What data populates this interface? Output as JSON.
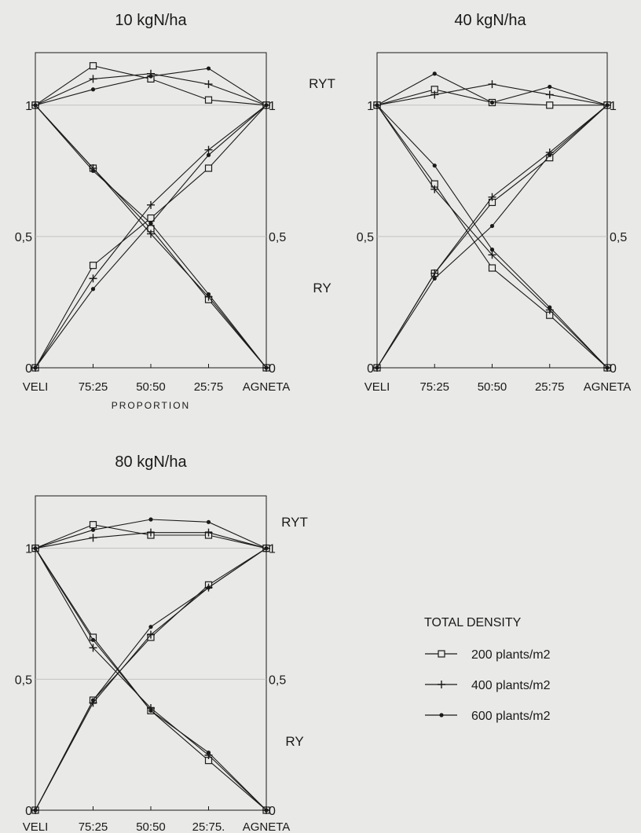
{
  "chart_data": [
    {
      "type": "line",
      "title": "10 kgN/ha",
      "categories": [
        "VELI",
        "75:25",
        "50:50",
        "25:75",
        "AGNETA"
      ],
      "xlabel": "PROPORTION",
      "ylim": [
        0,
        1.2
      ],
      "yticks": [
        "0",
        "0,5",
        "1"
      ],
      "right_yticks": [
        "0",
        "0,5",
        "1"
      ],
      "side_labels": [
        "RYT",
        "RY"
      ],
      "grid": "horizontal at 0.5 and 1",
      "ryt": [
        {
          "name": "200 plants/m2",
          "values": [
            1,
            1.15,
            1.1,
            1.02,
            1
          ]
        },
        {
          "name": "400 plants/m2",
          "values": [
            1,
            1.1,
            1.12,
            1.08,
            1
          ]
        },
        {
          "name": "600 plants/m2",
          "values": [
            1,
            1.06,
            1.11,
            1.14,
            1
          ]
        }
      ],
      "ry_veli": [
        {
          "name": "200 plants/m2",
          "values": [
            1,
            0.76,
            0.53,
            0.26,
            0
          ]
        },
        {
          "name": "400 plants/m2",
          "values": [
            1,
            0.76,
            0.51,
            0.27,
            0
          ]
        },
        {
          "name": "600 plants/m2",
          "values": [
            1,
            0.75,
            0.55,
            0.28,
            0
          ]
        }
      ],
      "ry_agneta": [
        {
          "name": "200 plants/m2",
          "values": [
            0,
            0.39,
            0.57,
            0.76,
            1
          ]
        },
        {
          "name": "400 plants/m2",
          "values": [
            0,
            0.34,
            0.62,
            0.83,
            1
          ]
        },
        {
          "name": "600 plants/m2",
          "values": [
            0,
            0.3,
            0.55,
            0.81,
            1
          ]
        }
      ]
    },
    {
      "type": "line",
      "title": "40 kgN/ha",
      "categories": [
        "VELI",
        "75:25",
        "50:50",
        "25:75",
        "AGNETA"
      ],
      "xlabel": "",
      "ylim": [
        0,
        1.2
      ],
      "yticks": [
        "0",
        "0,5",
        "1"
      ],
      "right_yticks": [
        "0",
        "0,5",
        "1"
      ],
      "side_labels": [
        "RYT",
        "RY"
      ],
      "grid": "horizontal at 0.5 and 1",
      "ryt": [
        {
          "name": "200 plants/m2",
          "values": [
            1,
            1.06,
            1.01,
            1,
            1
          ]
        },
        {
          "name": "400 plants/m2",
          "values": [
            1,
            1.04,
            1.08,
            1.04,
            1
          ]
        },
        {
          "name": "600 plants/m2",
          "values": [
            1,
            1.12,
            1.01,
            1.07,
            1
          ]
        }
      ],
      "ry_veli": [
        {
          "name": "200 plants/m2",
          "values": [
            1,
            0.7,
            0.38,
            0.2,
            0
          ]
        },
        {
          "name": "400 plants/m2",
          "values": [
            1,
            0.68,
            0.43,
            0.22,
            0
          ]
        },
        {
          "name": "600 plants/m2",
          "values": [
            1,
            0.77,
            0.45,
            0.23,
            0
          ]
        }
      ],
      "ry_agneta": [
        {
          "name": "200 plants/m2",
          "values": [
            0,
            0.36,
            0.63,
            0.8,
            1
          ]
        },
        {
          "name": "400 plants/m2",
          "values": [
            0,
            0.36,
            0.65,
            0.82,
            1
          ]
        },
        {
          "name": "600 plants/m2",
          "values": [
            0,
            0.34,
            0.54,
            0.81,
            1
          ]
        }
      ]
    },
    {
      "type": "line",
      "title": "80 kgN/ha",
      "categories": [
        "VELI",
        "75:25",
        "50:50",
        "25:75.",
        "AGNETA"
      ],
      "xlabel": "",
      "ylim": [
        0,
        1.2
      ],
      "yticks": [
        "0",
        "0,5",
        "1"
      ],
      "right_yticks": [
        "0",
        "0,5",
        "1"
      ],
      "side_labels": [
        "RYT",
        "RY"
      ],
      "grid": "horizontal at 0.5 and 1",
      "ryt": [
        {
          "name": "200 plants/m2",
          "values": [
            1,
            1.09,
            1.05,
            1.05,
            1
          ]
        },
        {
          "name": "400 plants/m2",
          "values": [
            1,
            1.04,
            1.06,
            1.06,
            1
          ]
        },
        {
          "name": "600 plants/m2",
          "values": [
            1,
            1.07,
            1.11,
            1.1,
            1
          ]
        }
      ],
      "ry_veli": [
        {
          "name": "200 plants/m2",
          "values": [
            1,
            0.66,
            0.38,
            0.19,
            0
          ]
        },
        {
          "name": "400 plants/m2",
          "values": [
            1,
            0.62,
            0.39,
            0.21,
            0
          ]
        },
        {
          "name": "600 plants/m2",
          "values": [
            1,
            0.65,
            0.38,
            0.22,
            0
          ]
        }
      ],
      "ry_agneta": [
        {
          "name": "200 plants/m2",
          "values": [
            0,
            0.42,
            0.66,
            0.86,
            1
          ]
        },
        {
          "name": "400 plants/m2",
          "values": [
            0,
            0.41,
            0.67,
            0.85,
            1
          ]
        },
        {
          "name": "600 plants/m2",
          "values": [
            0,
            0.42,
            0.7,
            0.85,
            1
          ]
        }
      ]
    }
  ],
  "legend": {
    "title": "TOTAL DENSITY",
    "items": [
      {
        "label": "200 plants/m2",
        "marker": "square"
      },
      {
        "label": "400 plants/m2",
        "marker": "plus"
      },
      {
        "label": "600 plants/m2",
        "marker": "dot"
      }
    ]
  },
  "colors": {
    "line": "#1a1a1a",
    "grid": "#bdbdbd",
    "background": "#e9e9e7"
  }
}
